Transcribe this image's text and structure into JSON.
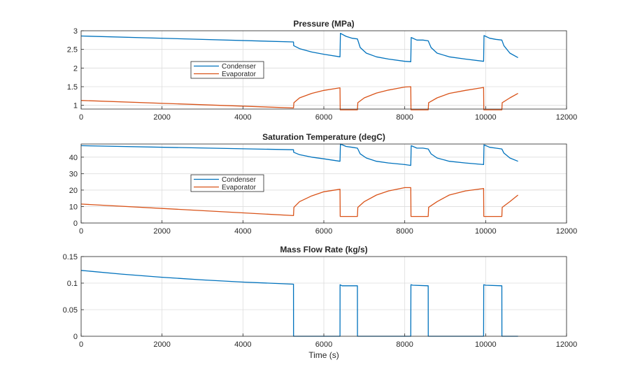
{
  "colors": {
    "series1": "#0072bd",
    "series2": "#d95319",
    "grid": "#dcdcdc",
    "axis": "#262626"
  },
  "chart_data": [
    {
      "type": "line",
      "title": "Pressure (MPa)",
      "xlabel": "",
      "ylabel": "",
      "xlim": [
        0,
        12000
      ],
      "ylim": [
        0.9,
        3.0
      ],
      "xticks": [
        0,
        2000,
        4000,
        6000,
        8000,
        10000,
        12000
      ],
      "xtick_labels": [
        "0",
        "2000",
        "4000",
        "6000",
        "8000",
        "10000",
        "12000"
      ],
      "yticks": [
        1,
        1.5,
        2,
        2.5,
        3
      ],
      "ytick_labels": [
        "1",
        "1.5",
        "2",
        "2.5",
        "3"
      ],
      "grid": true,
      "legend": "left-middle",
      "series": [
        {
          "name": "Condenser",
          "color": "#0072bd",
          "x": [
            0,
            5250,
            5255,
            5400,
            5700,
            6000,
            6400,
            6410,
            6550,
            6700,
            6830,
            6900,
            7050,
            7300,
            7600,
            8000,
            8150,
            8160,
            8300,
            8450,
            8580,
            8650,
            8800,
            9100,
            9500,
            9950,
            9960,
            10100,
            10250,
            10400,
            10450,
            10600,
            10800
          ],
          "y": [
            2.86,
            2.7,
            2.6,
            2.52,
            2.43,
            2.37,
            2.3,
            2.93,
            2.85,
            2.8,
            2.78,
            2.55,
            2.4,
            2.3,
            2.24,
            2.18,
            2.17,
            2.82,
            2.75,
            2.75,
            2.73,
            2.55,
            2.4,
            2.3,
            2.24,
            2.18,
            2.87,
            2.8,
            2.77,
            2.75,
            2.6,
            2.4,
            2.28
          ]
        },
        {
          "name": "Evaporator",
          "color": "#d95319",
          "x": [
            0,
            5250,
            5260,
            5400,
            5700,
            6000,
            6400,
            6405,
            6830,
            6840,
            7000,
            7300,
            7600,
            8000,
            8150,
            8155,
            8580,
            8590,
            8800,
            9100,
            9500,
            9950,
            9955,
            10400,
            10410,
            10600,
            10800
          ],
          "y": [
            1.13,
            0.93,
            1.07,
            1.2,
            1.32,
            1.4,
            1.47,
            0.88,
            0.88,
            1.07,
            1.2,
            1.33,
            1.41,
            1.49,
            1.5,
            0.88,
            0.88,
            1.07,
            1.2,
            1.32,
            1.4,
            1.48,
            0.88,
            0.88,
            1.07,
            1.2,
            1.32
          ]
        }
      ]
    },
    {
      "type": "line",
      "title": "Saturation Temperature (degC)",
      "xlabel": "",
      "ylabel": "",
      "xlim": [
        0,
        12000
      ],
      "ylim": [
        0,
        48
      ],
      "xticks": [
        0,
        2000,
        4000,
        6000,
        8000,
        10000,
        12000
      ],
      "xtick_labels": [
        "0",
        "2000",
        "4000",
        "6000",
        "8000",
        "10000",
        "12000"
      ],
      "yticks": [
        0,
        10,
        20,
        30,
        40
      ],
      "ytick_labels": [
        "0",
        "10",
        "20",
        "30",
        "40"
      ],
      "grid": true,
      "legend": "left-middle",
      "series": [
        {
          "name": "Condenser",
          "color": "#0072bd",
          "x": [
            0,
            5250,
            5255,
            5400,
            5700,
            6000,
            6400,
            6410,
            6550,
            6700,
            6830,
            6900,
            7050,
            7300,
            7600,
            8000,
            8150,
            8160,
            8300,
            8450,
            8580,
            8650,
            8800,
            9100,
            9500,
            9950,
            9960,
            10100,
            10250,
            10400,
            10450,
            10600,
            10800
          ],
          "y": [
            47,
            44.5,
            43,
            41.5,
            40,
            39,
            37.5,
            48,
            46.5,
            46,
            45.5,
            42,
            39.5,
            37.5,
            36.5,
            35.5,
            35,
            47,
            45.5,
            45.5,
            45,
            42,
            39.5,
            37.5,
            36.5,
            35.5,
            47.5,
            46,
            45.5,
            45,
            42.5,
            39.5,
            37.5
          ]
        },
        {
          "name": "Evaporator",
          "color": "#d95319",
          "x": [
            0,
            5250,
            5260,
            5400,
            5700,
            6000,
            6400,
            6405,
            6830,
            6840,
            7000,
            7300,
            7600,
            8000,
            8150,
            8155,
            8580,
            8590,
            8800,
            9100,
            9500,
            9950,
            9955,
            10400,
            10410,
            10600,
            10800
          ],
          "y": [
            11.5,
            4.5,
            9.5,
            13,
            16.5,
            19,
            20.5,
            4,
            4,
            9.5,
            13,
            17,
            19.5,
            21.5,
            21.5,
            4,
            4,
            9.5,
            13,
            17,
            19.5,
            21,
            4,
            4,
            9.5,
            13,
            17
          ]
        }
      ]
    },
    {
      "type": "line",
      "title": "Mass Flow Rate (kg/s)",
      "xlabel": "Time (s)",
      "ylabel": "",
      "xlim": [
        0,
        12000
      ],
      "ylim": [
        0,
        0.15
      ],
      "xticks": [
        0,
        2000,
        4000,
        6000,
        8000,
        10000,
        12000
      ],
      "xtick_labels": [
        "0",
        "2000",
        "4000",
        "6000",
        "8000",
        "10000",
        "12000"
      ],
      "yticks": [
        0,
        0.05,
        0.1,
        0.15
      ],
      "ytick_labels": [
        "0",
        "0.05",
        "0.1",
        "0.15"
      ],
      "grid": true,
      "legend": "none",
      "series": [
        {
          "name": "",
          "color": "#0072bd",
          "x": [
            0,
            1000,
            2000,
            3000,
            4000,
            5250,
            5252,
            6400,
            6402,
            6450,
            6830,
            6832,
            8150,
            8152,
            8200,
            8580,
            8582,
            9950,
            9952,
            10000,
            10400,
            10402,
            10800
          ],
          "y": [
            0.124,
            0.117,
            0.111,
            0.106,
            0.102,
            0.098,
            0,
            0,
            0.097,
            0.095,
            0.095,
            0,
            0,
            0.097,
            0.096,
            0.095,
            0,
            0,
            0.097,
            0.096,
            0.095,
            0,
            0
          ]
        }
      ]
    }
  ]
}
